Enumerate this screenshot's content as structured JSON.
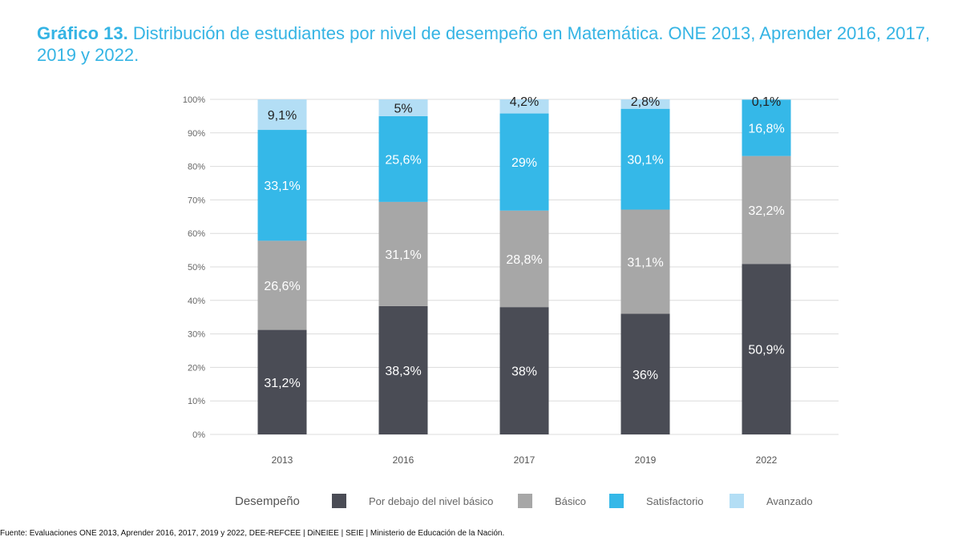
{
  "title": {
    "bold": "Gráfico 13.",
    "rest": " Distribución de estudiantes por nivel de desempeño en Matemática. ONE 2013, Aprender 2016, 2017, 2019 y 2022."
  },
  "source": "Fuente: Evaluaciones ONE 2013, Aprender 2016, 2017, 2019 y 2022, DEE-REFCEE | DiNEIEE | SEIE | Ministerio de Educación de la Nación.",
  "legend_title": "Desempeño",
  "chart_data": {
    "type": "bar",
    "stacked": true,
    "categories": [
      "2013",
      "2016",
      "2017",
      "2019",
      "2022"
    ],
    "series": [
      {
        "name": "Por debajo del nivel básico",
        "color": "#4a4c55",
        "label_color": "#ffffff",
        "values": [
          31.2,
          38.3,
          38,
          36,
          50.9
        ],
        "labels": [
          "31,2%",
          "38,3%",
          "38%",
          "36%",
          "50,9%"
        ]
      },
      {
        "name": "Básico",
        "color": "#a7a7a7",
        "label_color": "#ffffff",
        "values": [
          26.6,
          31.1,
          28.8,
          31.1,
          32.2
        ],
        "labels": [
          "26,6%",
          "31,1%",
          "28,8%",
          "31,1%",
          "32,2%"
        ]
      },
      {
        "name": "Satisfactorio",
        "color": "#35b8e8",
        "label_color": "#ffffff",
        "values": [
          33.1,
          25.6,
          29,
          30.1,
          16.8
        ],
        "labels": [
          "33,1%",
          "25,6%",
          "29%",
          "30,1%",
          "16,8%"
        ]
      },
      {
        "name": "Avanzado",
        "color": "#b3def5",
        "label_color": "#222222",
        "values": [
          9.1,
          5,
          4.2,
          2.8,
          0.1
        ],
        "labels": [
          "9,1%",
          "5%",
          "4,2%",
          "2,8%",
          "0,1%"
        ]
      }
    ],
    "yticks": [
      "0%",
      "10%",
      "20%",
      "30%",
      "40%",
      "50%",
      "60%",
      "70%",
      "80%",
      "90%",
      "100%"
    ],
    "ylim": [
      0,
      100
    ],
    "grid": true,
    "legend_position": "bottom"
  }
}
